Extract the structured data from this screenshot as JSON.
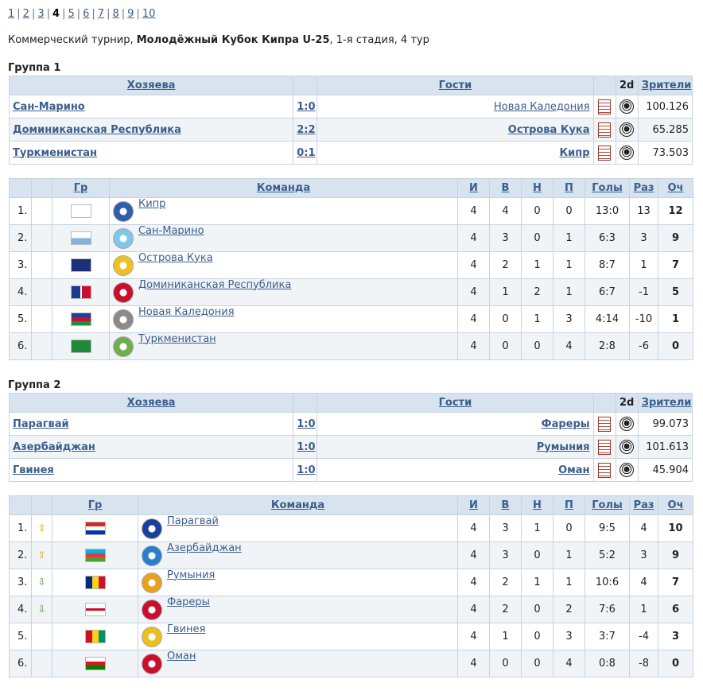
{
  "pager": [
    "1",
    "2",
    "3",
    "4",
    "5",
    "6",
    "7",
    "8",
    "9",
    "10"
  ],
  "pager_current": "4",
  "title": {
    "prefix": "Коммерческий турнир, ",
    "tournament": "Молодёжный Кубок Кипра U-25",
    "suffix": ", 1-я стадия, 4 тур"
  },
  "match_headers": {
    "home": "Хозяева",
    "away": "Гости",
    "d2": "2d",
    "spectators": "Зрители"
  },
  "standing_headers": {
    "group": "Гр",
    "team": "Команда",
    "played": "И",
    "won": "В",
    "drawn": "Н",
    "lost": "П",
    "goals": "Голы",
    "diff": "Раз",
    "points": "Оч"
  },
  "groups": [
    {
      "title": "Группа 1",
      "matches": [
        {
          "home": "Сан-Марино",
          "score": "1:0",
          "away": "Новая Каледония",
          "spectators": "100.126"
        },
        {
          "home": "Доминиканская Республика",
          "score": "2:2",
          "away": "Острова Кука",
          "spectators": "65.285"
        },
        {
          "home": "Туркменистан",
          "score": "0:1",
          "away": "Кипр",
          "spectators": "73.503"
        }
      ],
      "standings": [
        {
          "pos": "1.",
          "trend": "",
          "team": "Кипр",
          "p": "4",
          "w": "4",
          "d": "0",
          "l": "0",
          "goals": "13:0",
          "diff": "13",
          "pts": "12"
        },
        {
          "pos": "2.",
          "trend": "",
          "team": "Сан-Марино",
          "p": "4",
          "w": "3",
          "d": "0",
          "l": "1",
          "goals": "6:3",
          "diff": "3",
          "pts": "9"
        },
        {
          "pos": "3.",
          "trend": "",
          "team": "Острова Кука",
          "p": "4",
          "w": "2",
          "d": "1",
          "l": "1",
          "goals": "8:7",
          "diff": "1",
          "pts": "7"
        },
        {
          "pos": "4.",
          "trend": "",
          "team": "Доминиканская Республика",
          "p": "4",
          "w": "1",
          "d": "2",
          "l": "1",
          "goals": "6:7",
          "diff": "-1",
          "pts": "5"
        },
        {
          "pos": "5.",
          "trend": "",
          "team": "Новая Каледония",
          "p": "4",
          "w": "0",
          "d": "1",
          "l": "3",
          "goals": "4:14",
          "diff": "-10",
          "pts": "1"
        },
        {
          "pos": "6.",
          "trend": "",
          "team": "Туркменистан",
          "p": "4",
          "w": "0",
          "d": "0",
          "l": "4",
          "goals": "2:8",
          "diff": "-6",
          "pts": "0"
        }
      ]
    },
    {
      "title": "Группа 2",
      "matches": [
        {
          "home": "Парагвай",
          "score": "1:0",
          "away": "Фареры",
          "spectators": "99.073"
        },
        {
          "home": "Азербайджан",
          "score": "1:0",
          "away": "Румыния",
          "spectators": "101.613"
        },
        {
          "home": "Гвинея",
          "score": "1:0",
          "away": "Оман",
          "spectators": "45.904"
        }
      ],
      "standings": [
        {
          "pos": "1.",
          "trend": "up",
          "team": "Парагвай",
          "p": "4",
          "w": "3",
          "d": "1",
          "l": "0",
          "goals": "9:5",
          "diff": "4",
          "pts": "10"
        },
        {
          "pos": "2.",
          "trend": "up",
          "team": "Азербайджан",
          "p": "4",
          "w": "3",
          "d": "0",
          "l": "1",
          "goals": "5:2",
          "diff": "3",
          "pts": "9"
        },
        {
          "pos": "3.",
          "trend": "down",
          "team": "Румыния",
          "p": "4",
          "w": "2",
          "d": "1",
          "l": "1",
          "goals": "10:6",
          "diff": "4",
          "pts": "7"
        },
        {
          "pos": "4.",
          "trend": "down",
          "team": "Фареры",
          "p": "4",
          "w": "2",
          "d": "0",
          "l": "2",
          "goals": "7:6",
          "diff": "1",
          "pts": "6"
        },
        {
          "pos": "5.",
          "trend": "",
          "team": "Гвинея",
          "p": "4",
          "w": "1",
          "d": "0",
          "l": "3",
          "goals": "3:7",
          "diff": "-4",
          "pts": "3"
        },
        {
          "pos": "6.",
          "trend": "",
          "team": "Оман",
          "p": "4",
          "w": "0",
          "d": "0",
          "l": "4",
          "goals": "0:8",
          "diff": "-8",
          "pts": "0"
        }
      ]
    }
  ],
  "icons": {
    "report": "report-icon",
    "ball": "soccer-ball-icon",
    "trend_up": "arrow-up-icon",
    "trend_down": "arrow-down-icon"
  },
  "colors": {
    "header_bg": "#d7e3ee",
    "link": "#3b5e8c",
    "alt_row": "#f1f4f7"
  }
}
